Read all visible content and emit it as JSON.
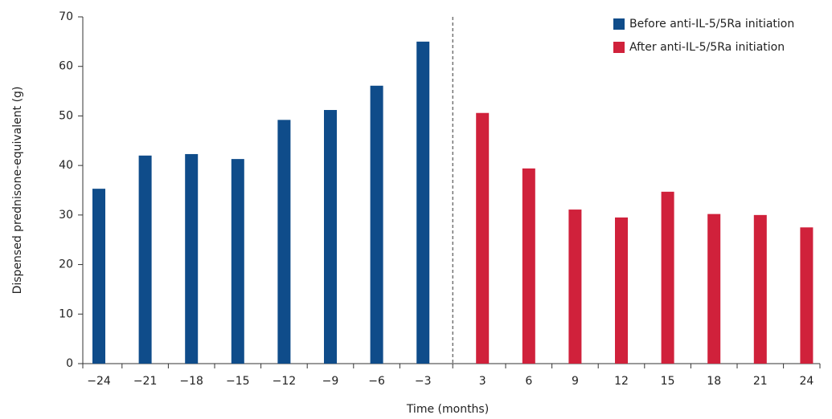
{
  "chart_data": {
    "type": "bar",
    "x_label": "Time (months)",
    "y_label": "Dispensed prednisone-equivalent (g)",
    "categories": [
      "−24",
      "−21",
      "−18",
      "−15",
      "−12",
      "−9",
      "−6",
      "−3",
      "3",
      "6",
      "9",
      "12",
      "15",
      "18",
      "21",
      "24"
    ],
    "series": [
      {
        "name": "Before anti-IL-5/5Ra initiation",
        "color": "#0f4c8a",
        "values": [
          35.3,
          42,
          42.3,
          41.3,
          49.2,
          51.2,
          56.1,
          65,
          null,
          null,
          null,
          null,
          null,
          null,
          null,
          null
        ]
      },
      {
        "name": "After anti-IL-5/5Ra initiation",
        "color": "#d0213b",
        "values": [
          null,
          null,
          null,
          null,
          null,
          null,
          null,
          null,
          50.6,
          39.4,
          31.1,
          29.5,
          34.7,
          30.2,
          30,
          27.5
        ]
      }
    ],
    "ylim": [
      0,
      70
    ],
    "yticks": [
      0,
      10,
      20,
      30,
      40,
      50,
      60,
      70
    ],
    "legend": "top-right"
  }
}
